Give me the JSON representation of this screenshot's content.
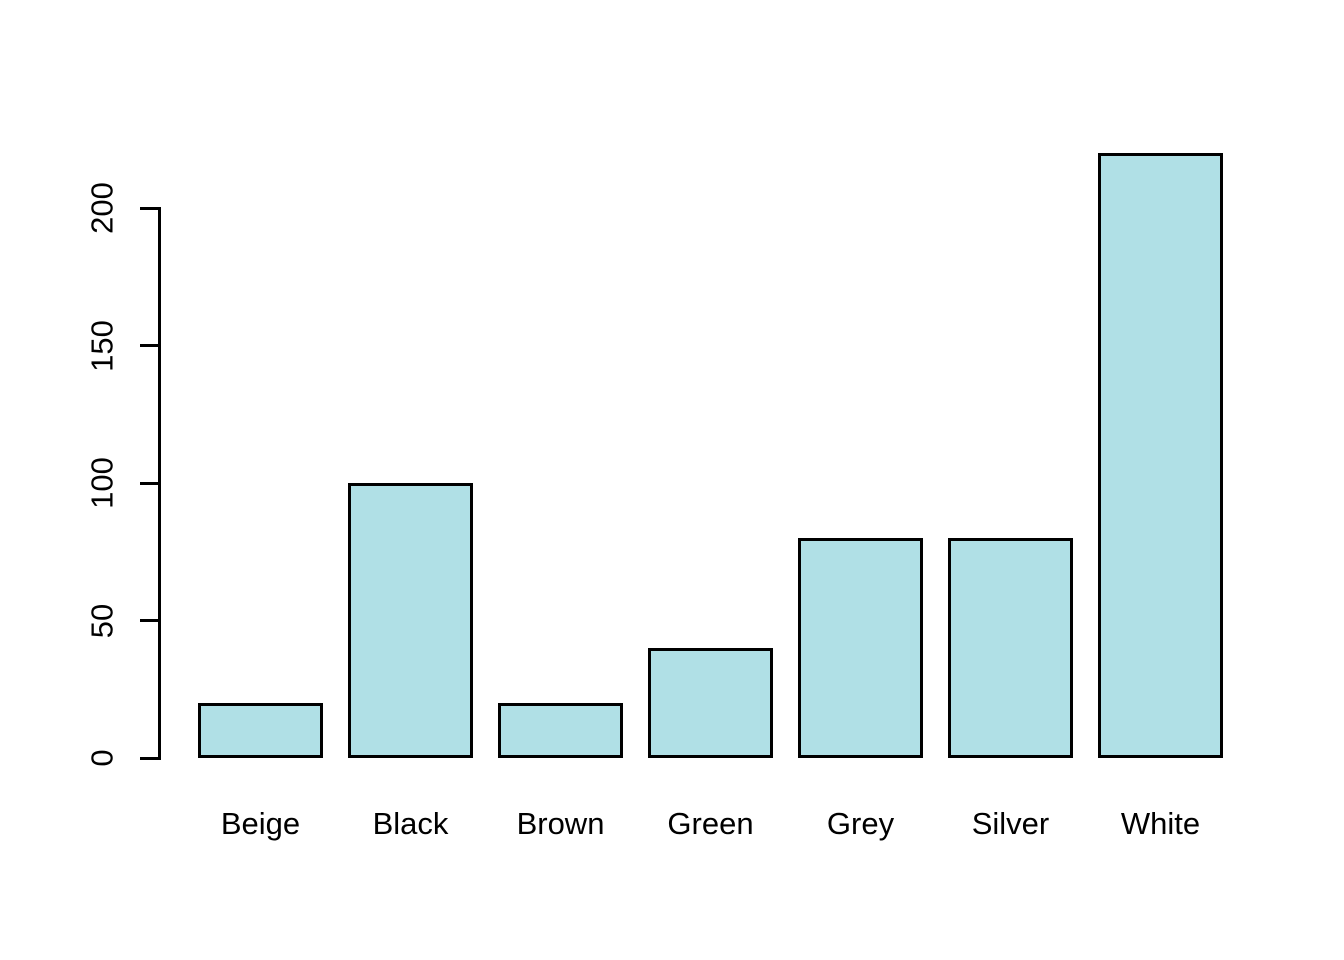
{
  "chart_data": {
    "type": "bar",
    "title": "",
    "xlabel": "",
    "ylabel": "",
    "categories": [
      "Beige",
      "Black",
      "Brown",
      "Green",
      "Grey",
      "Silver",
      "White"
    ],
    "values": [
      20,
      100,
      20,
      40,
      80,
      80,
      220
    ],
    "yticks": [
      0,
      50,
      100,
      150,
      200
    ],
    "ylim": [
      0,
      220
    ],
    "grid": "off",
    "legend": "none",
    "colors": {
      "bar_fill": "#B0E0E6",
      "bar_stroke": "#000000",
      "axis": "#000000",
      "text": "#000000",
      "background": "#FFFFFF"
    }
  }
}
